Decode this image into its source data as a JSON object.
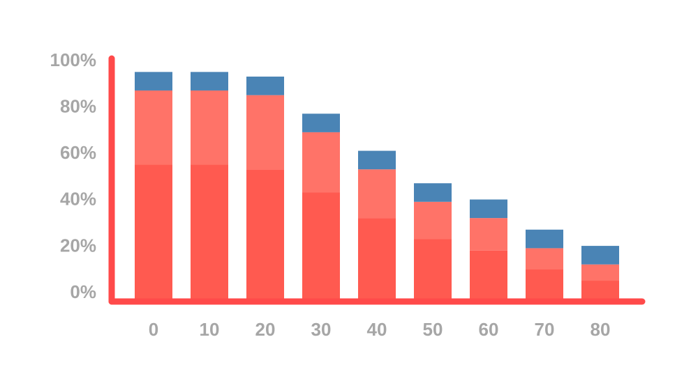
{
  "chart_data": {
    "type": "bar",
    "stacked": true,
    "categories": [
      "0",
      "10",
      "20",
      "30",
      "40",
      "50",
      "60",
      "70",
      "80"
    ],
    "y_tick_labels": [
      "100%",
      "80%",
      "60%",
      "40%",
      "20%",
      "0%"
    ],
    "y_ticks": [
      100,
      80,
      60,
      40,
      20,
      0
    ],
    "ylim": [
      0,
      100
    ],
    "grid": false,
    "series": [
      {
        "values": [
          59,
          59,
          57,
          47,
          36,
          27,
          22,
          14,
          9
        ],
        "color": "#ff5a50"
      },
      {
        "values": [
          32,
          32,
          32,
          26,
          21,
          16,
          14,
          9,
          7
        ],
        "color": "#ff7368"
      },
      {
        "values": [
          8,
          8,
          8,
          8,
          8,
          8,
          8,
          8,
          8
        ],
        "color": "#4a84b5"
      }
    ],
    "axis_color": "#ff4a4a"
  }
}
